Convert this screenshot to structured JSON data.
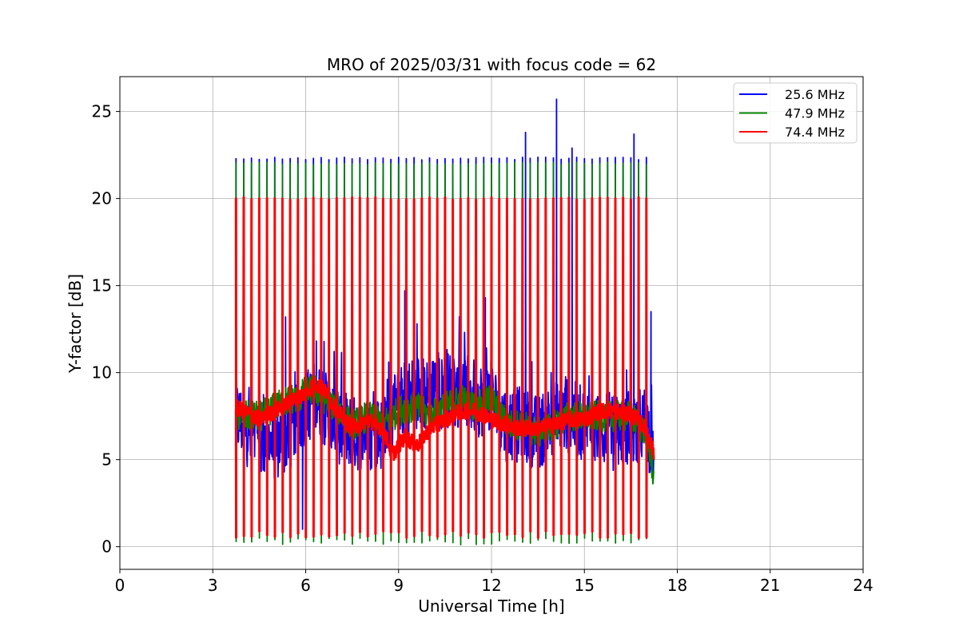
{
  "chart_data": {
    "type": "line",
    "title": "MRO of 2025/03/31 with focus code = 62",
    "xlabel": "Universal Time [h]",
    "ylabel": "Y-factor [dB]",
    "xlim": [
      0,
      24
    ],
    "ylim": [
      -1.3,
      27
    ],
    "xticks": [
      0,
      3,
      6,
      9,
      12,
      15,
      18,
      21,
      24
    ],
    "yticks": [
      0,
      5,
      10,
      15,
      20,
      25
    ],
    "grid": true,
    "legend_position": "top-right",
    "data_span_hours": [
      3.75,
      17.25
    ],
    "calibration_pulse_period_hours": 0.25,
    "calibration_pulse_peak_levels": [
      {
        "series": "25.6 MHz",
        "value": 22.3
      },
      {
        "series": "47.9 MHz",
        "value": 22.0
      },
      {
        "series": "74.4 MHz",
        "value": 20.0
      }
    ],
    "calibration_pulse_low_levels": [
      {
        "series": "47.9 MHz",
        "value": 0.3
      },
      {
        "series": "74.4 MHz",
        "value": 0.7
      }
    ],
    "series": [
      {
        "name": "25.6 MHz",
        "color": "#0000ff",
        "x": [
          3.75,
          4.0,
          4.5,
          5.0,
          5.5,
          5.8,
          6.0,
          6.3,
          6.6,
          7.0,
          7.5,
          8.0,
          8.5,
          8.8,
          9.2,
          9.6,
          10.0,
          10.5,
          11.0,
          11.5,
          12.0,
          12.5,
          13.0,
          13.5,
          14.0,
          14.5,
          15.0,
          15.5,
          16.0,
          16.5,
          17.0,
          17.25
        ],
        "y": [
          7.5,
          7.0,
          6.0,
          6.0,
          6.5,
          7.5,
          8.0,
          8.5,
          8.0,
          7.0,
          6.5,
          6.5,
          6.5,
          7.5,
          8.5,
          9.0,
          8.5,
          9.0,
          9.0,
          8.5,
          8.5,
          7.0,
          7.0,
          6.5,
          7.5,
          7.5,
          7.0,
          7.0,
          6.5,
          7.0,
          7.0,
          5.5
        ],
        "spikes": [
          {
            "x": 5.35,
            "y": 13.2
          },
          {
            "x": 5.9,
            "y": 1.0
          },
          {
            "x": 9.2,
            "y": 14.7
          },
          {
            "x": 11.8,
            "y": 14.3
          },
          {
            "x": 13.1,
            "y": 23.8
          },
          {
            "x": 14.1,
            "y": 25.7
          },
          {
            "x": 14.6,
            "y": 22.9
          },
          {
            "x": 16.6,
            "y": 23.7
          },
          {
            "x": 17.15,
            "y": 13.5
          }
        ]
      },
      {
        "name": "47.9 MHz",
        "color": "#008000",
        "x": [
          3.75,
          4.0,
          4.5,
          5.0,
          5.5,
          5.8,
          6.0,
          6.3,
          6.6,
          7.0,
          7.5,
          8.0,
          8.5,
          8.8,
          9.2,
          9.6,
          10.0,
          10.5,
          11.0,
          11.5,
          12.0,
          12.5,
          13.0,
          13.5,
          14.0,
          14.5,
          15.0,
          15.5,
          16.0,
          16.5,
          17.0,
          17.25
        ],
        "y": [
          7.5,
          7.5,
          7.5,
          8.0,
          8.5,
          8.5,
          9.0,
          9.0,
          8.5,
          8.0,
          7.0,
          7.5,
          7.0,
          7.5,
          8.0,
          8.0,
          7.5,
          8.0,
          8.5,
          8.0,
          8.5,
          7.0,
          7.0,
          6.5,
          7.0,
          7.5,
          7.5,
          7.5,
          7.5,
          7.5,
          6.5,
          4.0
        ]
      },
      {
        "name": "74.4 MHz",
        "color": "#ff0000",
        "x": [
          3.75,
          4.0,
          4.5,
          5.0,
          5.5,
          5.8,
          6.0,
          6.3,
          6.6,
          7.0,
          7.5,
          8.0,
          8.5,
          8.8,
          9.2,
          9.6,
          10.0,
          10.5,
          11.0,
          11.5,
          12.0,
          12.5,
          13.0,
          13.5,
          14.0,
          14.5,
          15.0,
          15.5,
          16.0,
          16.5,
          17.0,
          17.25
        ],
        "y": [
          8.0,
          7.8,
          7.3,
          7.8,
          8.3,
          8.6,
          8.8,
          9.4,
          9.0,
          7.8,
          6.8,
          7.3,
          6.8,
          5.3,
          6.3,
          5.8,
          6.8,
          7.3,
          7.8,
          7.8,
          7.3,
          7.0,
          6.8,
          6.8,
          7.0,
          7.3,
          7.3,
          7.8,
          7.8,
          7.6,
          6.8,
          5.3
        ]
      }
    ]
  }
}
